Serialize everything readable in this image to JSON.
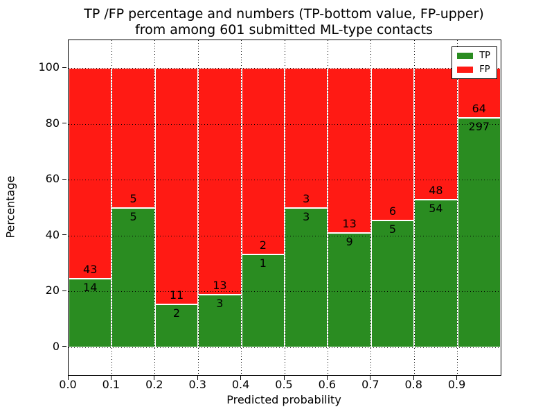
{
  "title": {
    "line1": "TP /FP percentage and numbers (TP-bottom value, FP-upper)",
    "line2": "from among 601 submitted ML-type contacts"
  },
  "axes": {
    "xlabel": "Predicted probability",
    "ylabel": "Percentage",
    "xtick_labels": [
      "0.0",
      "0.1",
      "0.2",
      "0.3",
      "0.4",
      "0.5",
      "0.6",
      "0.7",
      "0.8",
      "0.9"
    ],
    "ytick_labels": [
      "0",
      "20",
      "40",
      "60",
      "80",
      "100"
    ]
  },
  "legend": {
    "items": [
      {
        "label": "TP",
        "color": "#2a8c21"
      },
      {
        "label": "FP",
        "color": "#ff1a14"
      }
    ]
  },
  "colors": {
    "tp": "#2a8c21",
    "fp": "#ff1a14",
    "grid": "#000000",
    "background": "#ffffff"
  },
  "chart_data": {
    "type": "bar",
    "stacked": true,
    "normalized": "each bin scaled to 100%",
    "title": "TP /FP percentage and numbers (TP-bottom value, FP-upper) from among 601 submitted ML-type contacts",
    "xlabel": "Predicted probability",
    "ylabel": "Percentage",
    "xlim": [
      0.0,
      1.0
    ],
    "ylim": [
      -10,
      110
    ],
    "grid": "dotted black, horizontal every 20%, vertical every 0.1",
    "legend_position": "upper right",
    "total_contacts": 601,
    "bin_width": 0.1,
    "xticks": [
      0.0,
      0.1,
      0.2,
      0.3,
      0.4,
      0.5,
      0.6,
      0.7,
      0.8,
      0.9
    ],
    "yticks": [
      0,
      20,
      40,
      60,
      80,
      100
    ],
    "bins": [
      {
        "x_start": 0.0,
        "x_end": 0.1,
        "tp": 14,
        "fp": 43,
        "tp_pct": 24.56
      },
      {
        "x_start": 0.1,
        "x_end": 0.2,
        "tp": 5,
        "fp": 5,
        "tp_pct": 50.0
      },
      {
        "x_start": 0.2,
        "x_end": 0.3,
        "tp": 2,
        "fp": 11,
        "tp_pct": 15.38
      },
      {
        "x_start": 0.3,
        "x_end": 0.4,
        "tp": 3,
        "fp": 13,
        "tp_pct": 18.75
      },
      {
        "x_start": 0.4,
        "x_end": 0.5,
        "tp": 1,
        "fp": 2,
        "tp_pct": 33.33
      },
      {
        "x_start": 0.5,
        "x_end": 0.6,
        "tp": 3,
        "fp": 3,
        "tp_pct": 50.0
      },
      {
        "x_start": 0.6,
        "x_end": 0.7,
        "tp": 9,
        "fp": 13,
        "tp_pct": 40.91
      },
      {
        "x_start": 0.7,
        "x_end": 0.8,
        "tp": 5,
        "fp": 6,
        "tp_pct": 45.45
      },
      {
        "x_start": 0.8,
        "x_end": 0.9,
        "tp": 54,
        "fp": 48,
        "tp_pct": 52.94
      },
      {
        "x_start": 0.9,
        "x_end": 1.0,
        "tp": 297,
        "fp": 64,
        "tp_pct": 82.27
      }
    ]
  }
}
